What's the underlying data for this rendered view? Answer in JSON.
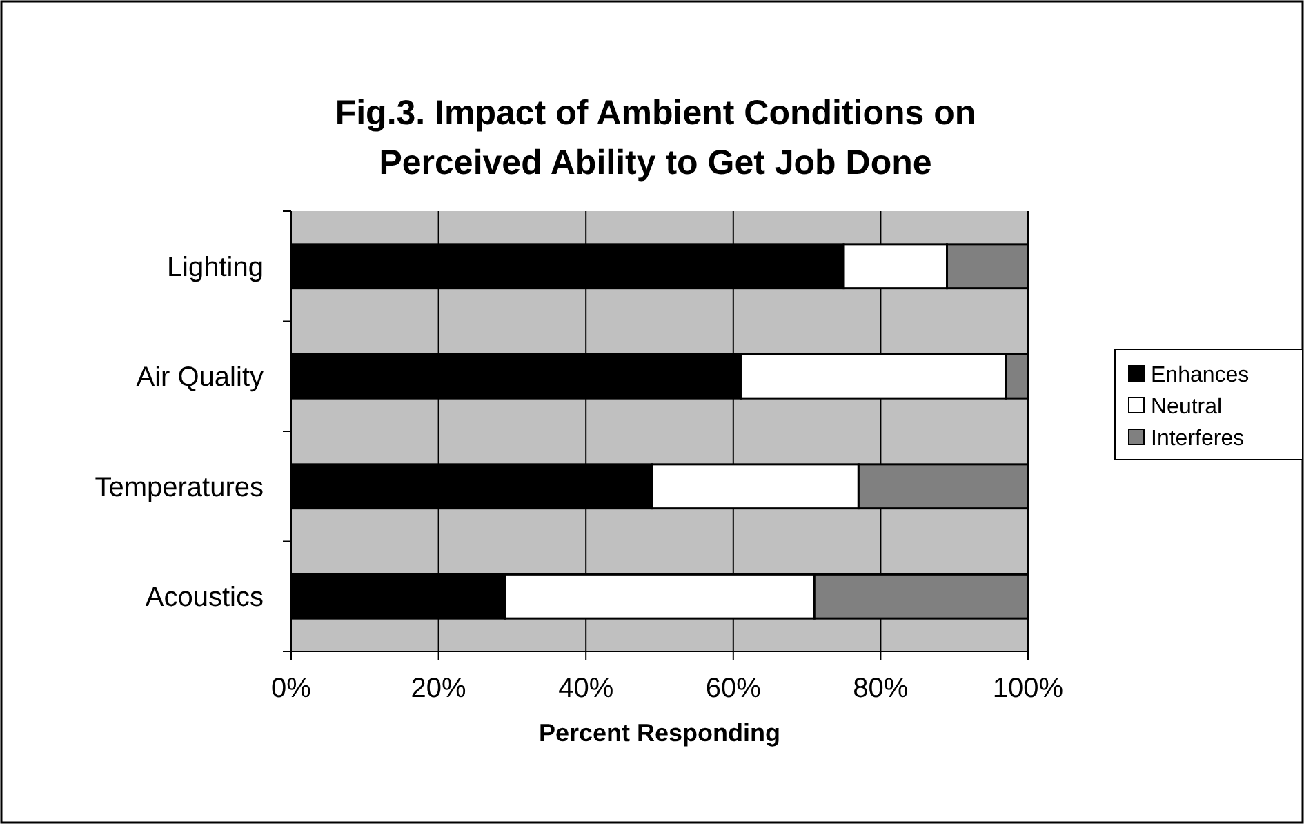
{
  "chart_data": {
    "type": "bar",
    "orientation": "horizontal",
    "stacked": true,
    "title": "Fig.3. Impact of Ambient Conditions on Perceived Ability to Get Job Done",
    "xlabel": "Percent Responding",
    "categories": [
      "Lighting",
      "Air Quality",
      "Temperatures",
      "Acoustics"
    ],
    "series": [
      {
        "name": "Enhances",
        "color": "#000000",
        "values": [
          75,
          61,
          49,
          29
        ]
      },
      {
        "name": "Neutral",
        "color": "#ffffff",
        "values": [
          14,
          36,
          28,
          42
        ]
      },
      {
        "name": "Interferes",
        "color": "#808080",
        "values": [
          11,
          3,
          23,
          29
        ]
      }
    ],
    "xlim": [
      0,
      100
    ],
    "xticks": [
      {
        "value": 0,
        "label": "0%"
      },
      {
        "value": 20,
        "label": "20%"
      },
      {
        "value": 40,
        "label": "40%"
      },
      {
        "value": 60,
        "label": "60%"
      },
      {
        "value": 80,
        "label": "80%"
      },
      {
        "value": 100,
        "label": "100%"
      }
    ],
    "grid": "x",
    "legend": "right"
  }
}
